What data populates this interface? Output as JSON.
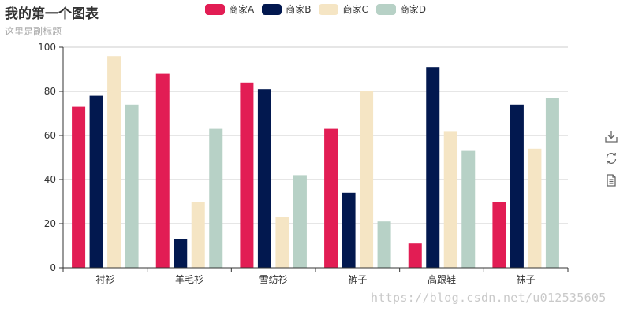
{
  "chart_data": {
    "type": "bar",
    "title": "我的第一个图表",
    "subtitle": "这里是副标题",
    "categories": [
      "衬衫",
      "羊毛衫",
      "雪纺衫",
      "裤子",
      "高跟鞋",
      "袜子"
    ],
    "series": [
      {
        "name": "商家A",
        "color": "#e21d54",
        "values": [
          73,
          88,
          84,
          63,
          11,
          30
        ]
      },
      {
        "name": "商家B",
        "color": "#02184f",
        "values": [
          78,
          13,
          81,
          34,
          91,
          74
        ]
      },
      {
        "name": "商家C",
        "color": "#f5e5c4",
        "values": [
          96,
          30,
          23,
          80,
          62,
          54
        ]
      },
      {
        "name": "商家D",
        "color": "#b7d1c6",
        "values": [
          74,
          63,
          42,
          21,
          53,
          77
        ]
      }
    ],
    "ylim": [
      0,
      100
    ],
    "yticks": [
      0,
      20,
      40,
      60,
      80,
      100
    ],
    "grid": true,
    "legend_position": "top-center"
  },
  "toolbox": {
    "icons": [
      "download-icon",
      "refresh-icon",
      "data-view-icon"
    ]
  },
  "watermark": "https://blog.csdn.net/u012535605"
}
